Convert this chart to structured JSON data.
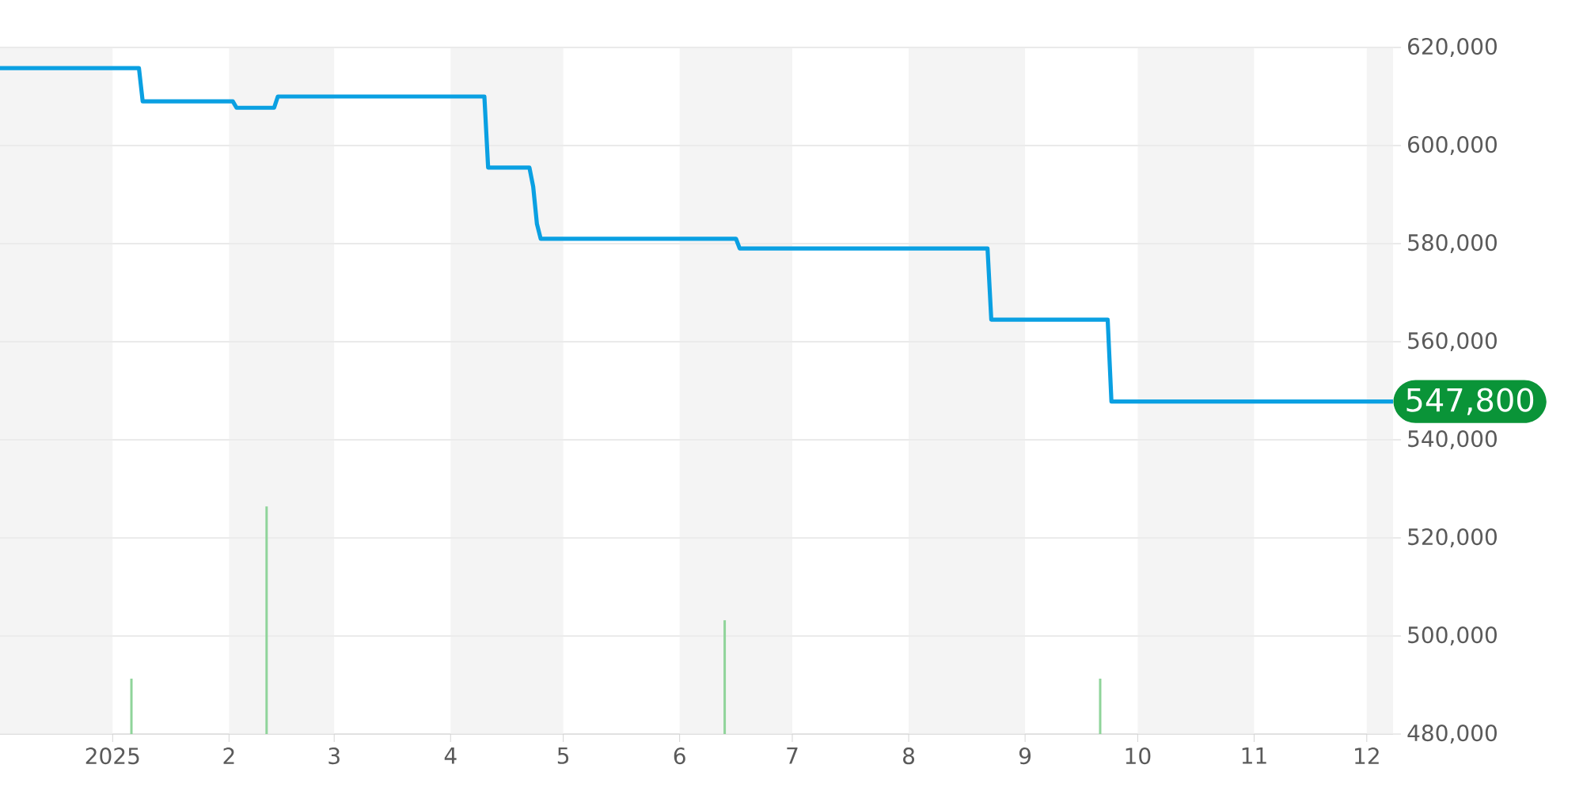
{
  "chart_data": {
    "type": "line",
    "xlim": [
      "2024-12-02",
      "2025-12-08"
    ],
    "ylim": [
      480000,
      620000
    ],
    "xticks": [
      {
        "value": "2025-01-01",
        "label": "2025"
      },
      {
        "value": "2025-02-01",
        "label": "2"
      },
      {
        "value": "2025-03-01",
        "label": "3"
      },
      {
        "value": "2025-04-01",
        "label": "4"
      },
      {
        "value": "2025-05-01",
        "label": "5"
      },
      {
        "value": "2025-06-01",
        "label": "6"
      },
      {
        "value": "2025-07-01",
        "label": "7"
      },
      {
        "value": "2025-08-01",
        "label": "8"
      },
      {
        "value": "2025-09-01",
        "label": "9"
      },
      {
        "value": "2025-10-01",
        "label": "10"
      },
      {
        "value": "2025-11-01",
        "label": "11"
      },
      {
        "value": "2025-12-01",
        "label": "12"
      }
    ],
    "yticks": [
      {
        "value": 480000,
        "label": "480,000"
      },
      {
        "value": 500000,
        "label": "500,000"
      },
      {
        "value": 520000,
        "label": "520,000"
      },
      {
        "value": 540000,
        "label": "540,000"
      },
      {
        "value": 560000,
        "label": "560,000"
      },
      {
        "value": 580000,
        "label": "580,000"
      },
      {
        "value": 600000,
        "label": "600,000"
      },
      {
        "value": 620000,
        "label": "620,000"
      }
    ],
    "grid": "y",
    "bands": [
      {
        "axis": "x",
        "from": "2024-12-02",
        "to": "2025-01-01",
        "color": "#f4f4f4"
      },
      {
        "axis": "x",
        "from": "2025-02-01",
        "to": "2025-03-01",
        "color": "#f4f4f4"
      },
      {
        "axis": "x",
        "from": "2025-04-01",
        "to": "2025-05-01",
        "color": "#f4f4f4"
      },
      {
        "axis": "x",
        "from": "2025-06-01",
        "to": "2025-07-01",
        "color": "#f4f4f4"
      },
      {
        "axis": "x",
        "from": "2025-08-01",
        "to": "2025-09-01",
        "color": "#f4f4f4"
      },
      {
        "axis": "x",
        "from": "2025-10-01",
        "to": "2025-11-01",
        "color": "#f4f4f4"
      },
      {
        "axis": "x",
        "from": "2025-12-01",
        "to": "2025-12-08",
        "color": "#f4f4f4"
      }
    ],
    "series": [
      {
        "type": "bar",
        "color": "#8fd49a",
        "x": [
          "2025-01-06",
          "2025-02-11",
          "2025-06-13",
          "2025-09-21"
        ],
        "values": [
          491300,
          526400,
          503200,
          491300
        ]
      },
      {
        "color": "#0aa0e2",
        "x": [
          "2024-12-02",
          "2025-01-08",
          "2025-01-09",
          "2025-02-02",
          "2025-02-03",
          "2025-02-13",
          "2025-02-14",
          "2025-04-10",
          "2025-04-11",
          "2025-04-22",
          "2025-04-23",
          "2025-04-24",
          "2025-04-25",
          "2025-06-16",
          "2025-06-17",
          "2025-08-22",
          "2025-08-23",
          "2025-09-23",
          "2025-09-24",
          "2025-12-08"
        ],
        "values": [
          615800,
          615800,
          609000,
          609000,
          607700,
          607700,
          610000,
          610000,
          595500,
          595500,
          591600,
          584000,
          581000,
          581000,
          579000,
          579000,
          564500,
          564500,
          547800,
          547800
        ]
      }
    ],
    "annotations": [
      {
        "text": "547,800",
        "x": "2025-12-08",
        "y": 547800
      }
    ]
  }
}
